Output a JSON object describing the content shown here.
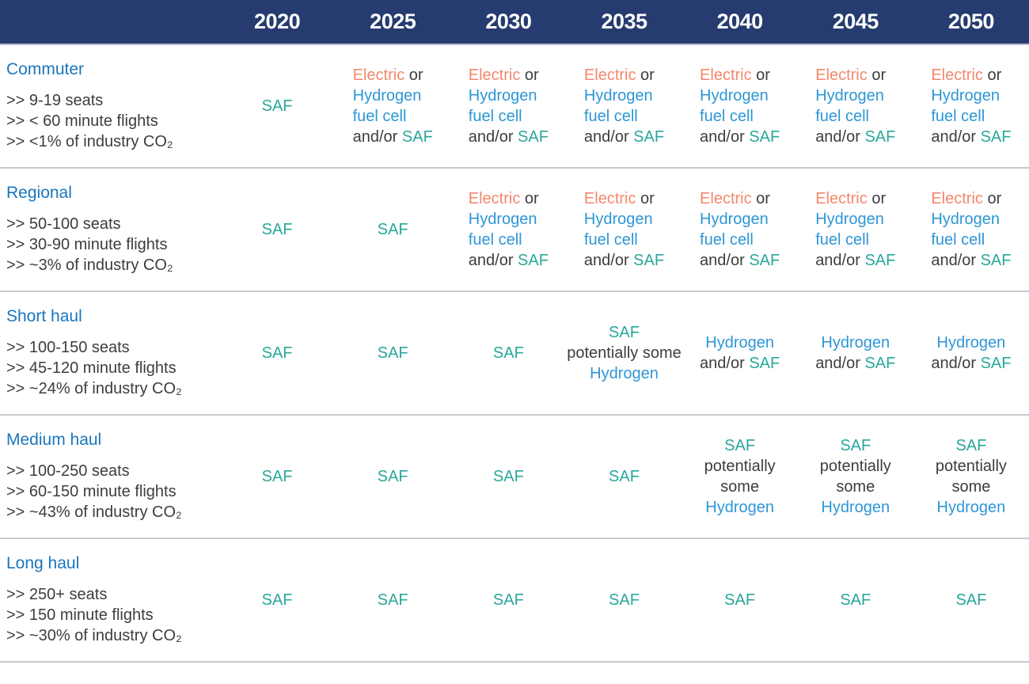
{
  "palette": {
    "header_bg": "#263B6F",
    "divider": "#C9C9CF",
    "title_blue": "#1B76BC",
    "saf_teal": "#2AA79B",
    "electric_orange": "#F4876C",
    "hydrogen_blue": "#2E96D5",
    "dark_text": "#3D3D3E"
  },
  "header": {
    "years": [
      "2020",
      "2025",
      "2030",
      "2035",
      "2040",
      "2045",
      "2050"
    ]
  },
  "legend_terms": {
    "saf": "SAF",
    "electric": "Electric",
    "hydrogen": "Hydrogen"
  },
  "rows": [
    {
      "title": "Commuter",
      "bullets": [
        ">> 9-19 seats",
        ">> < 60 minute flights",
        ">> <1% of industry CO₂"
      ],
      "cells": [
        {
          "align": "center",
          "lines": [
            [
              {
                "t": "SAF",
                "c": "saf"
              }
            ]
          ]
        },
        {
          "align": "left",
          "lines": [
            [
              {
                "t": "Electric",
                "c": "electric"
              },
              {
                "t": " or",
                "c": "dark"
              }
            ],
            [
              {
                "t": "Hydrogen",
                "c": "hydrogen"
              }
            ],
            [
              {
                "t": "fuel cell",
                "c": "hydrogen"
              }
            ],
            [
              {
                "t": "and/or ",
                "c": "dark"
              },
              {
                "t": "SAF",
                "c": "saf"
              }
            ]
          ]
        },
        {
          "align": "left",
          "lines": [
            [
              {
                "t": "Electric",
                "c": "electric"
              },
              {
                "t": " or",
                "c": "dark"
              }
            ],
            [
              {
                "t": "Hydrogen",
                "c": "hydrogen"
              }
            ],
            [
              {
                "t": "fuel cell",
                "c": "hydrogen"
              }
            ],
            [
              {
                "t": "and/or ",
                "c": "dark"
              },
              {
                "t": "SAF",
                "c": "saf"
              }
            ]
          ]
        },
        {
          "align": "left",
          "lines": [
            [
              {
                "t": "Electric",
                "c": "electric"
              },
              {
                "t": " or",
                "c": "dark"
              }
            ],
            [
              {
                "t": "Hydrogen",
                "c": "hydrogen"
              }
            ],
            [
              {
                "t": "fuel cell",
                "c": "hydrogen"
              }
            ],
            [
              {
                "t": "and/or ",
                "c": "dark"
              },
              {
                "t": "SAF",
                "c": "saf"
              }
            ]
          ]
        },
        {
          "align": "left",
          "lines": [
            [
              {
                "t": "Electric",
                "c": "electric"
              },
              {
                "t": " or",
                "c": "dark"
              }
            ],
            [
              {
                "t": "Hydrogen",
                "c": "hydrogen"
              }
            ],
            [
              {
                "t": "fuel cell",
                "c": "hydrogen"
              }
            ],
            [
              {
                "t": "and/or ",
                "c": "dark"
              },
              {
                "t": "SAF",
                "c": "saf"
              }
            ]
          ]
        },
        {
          "align": "left",
          "lines": [
            [
              {
                "t": "Electric",
                "c": "electric"
              },
              {
                "t": " or",
                "c": "dark"
              }
            ],
            [
              {
                "t": "Hydrogen",
                "c": "hydrogen"
              }
            ],
            [
              {
                "t": "fuel cell",
                "c": "hydrogen"
              }
            ],
            [
              {
                "t": "and/or ",
                "c": "dark"
              },
              {
                "t": "SAF",
                "c": "saf"
              }
            ]
          ]
        },
        {
          "align": "left",
          "lines": [
            [
              {
                "t": "Electric",
                "c": "electric"
              },
              {
                "t": " or",
                "c": "dark"
              }
            ],
            [
              {
                "t": "Hydrogen",
                "c": "hydrogen"
              }
            ],
            [
              {
                "t": "fuel cell",
                "c": "hydrogen"
              }
            ],
            [
              {
                "t": "and/or ",
                "c": "dark"
              },
              {
                "t": "SAF",
                "c": "saf"
              }
            ]
          ]
        }
      ]
    },
    {
      "title": "Regional",
      "bullets": [
        ">> 50-100 seats",
        ">> 30-90 minute flights",
        ">> ~3% of industry CO₂"
      ],
      "cells": [
        {
          "align": "center",
          "lines": [
            [
              {
                "t": "SAF",
                "c": "saf"
              }
            ]
          ]
        },
        {
          "align": "center",
          "lines": [
            [
              {
                "t": "SAF",
                "c": "saf"
              }
            ]
          ]
        },
        {
          "align": "left",
          "lines": [
            [
              {
                "t": "Electric",
                "c": "electric"
              },
              {
                "t": " or",
                "c": "dark"
              }
            ],
            [
              {
                "t": "Hydrogen",
                "c": "hydrogen"
              }
            ],
            [
              {
                "t": "fuel cell",
                "c": "hydrogen"
              }
            ],
            [
              {
                "t": "and/or ",
                "c": "dark"
              },
              {
                "t": "SAF",
                "c": "saf"
              }
            ]
          ]
        },
        {
          "align": "left",
          "lines": [
            [
              {
                "t": "Electric",
                "c": "electric"
              },
              {
                "t": " or",
                "c": "dark"
              }
            ],
            [
              {
                "t": "Hydrogen",
                "c": "hydrogen"
              }
            ],
            [
              {
                "t": "fuel cell",
                "c": "hydrogen"
              }
            ],
            [
              {
                "t": "and/or ",
                "c": "dark"
              },
              {
                "t": "SAF",
                "c": "saf"
              }
            ]
          ]
        },
        {
          "align": "left",
          "lines": [
            [
              {
                "t": "Electric",
                "c": "electric"
              },
              {
                "t": " or",
                "c": "dark"
              }
            ],
            [
              {
                "t": "Hydrogen",
                "c": "hydrogen"
              }
            ],
            [
              {
                "t": "fuel cell",
                "c": "hydrogen"
              }
            ],
            [
              {
                "t": "and/or ",
                "c": "dark"
              },
              {
                "t": "SAF",
                "c": "saf"
              }
            ]
          ]
        },
        {
          "align": "left",
          "lines": [
            [
              {
                "t": "Electric",
                "c": "electric"
              },
              {
                "t": " or",
                "c": "dark"
              }
            ],
            [
              {
                "t": "Hydrogen",
                "c": "hydrogen"
              }
            ],
            [
              {
                "t": "fuel cell",
                "c": "hydrogen"
              }
            ],
            [
              {
                "t": "and/or ",
                "c": "dark"
              },
              {
                "t": "SAF",
                "c": "saf"
              }
            ]
          ]
        },
        {
          "align": "left",
          "lines": [
            [
              {
                "t": "Electric",
                "c": "electric"
              },
              {
                "t": " or",
                "c": "dark"
              }
            ],
            [
              {
                "t": "Hydrogen",
                "c": "hydrogen"
              }
            ],
            [
              {
                "t": "fuel cell",
                "c": "hydrogen"
              }
            ],
            [
              {
                "t": "and/or ",
                "c": "dark"
              },
              {
                "t": "SAF",
                "c": "saf"
              }
            ]
          ]
        }
      ]
    },
    {
      "title": "Short haul",
      "bullets": [
        ">> 100-150 seats",
        ">> 45-120 minute flights",
        ">> ~24% of industry CO₂"
      ],
      "cells": [
        {
          "align": "center",
          "lines": [
            [
              {
                "t": "SAF",
                "c": "saf"
              }
            ]
          ]
        },
        {
          "align": "center",
          "lines": [
            [
              {
                "t": "SAF",
                "c": "saf"
              }
            ]
          ]
        },
        {
          "align": "center",
          "lines": [
            [
              {
                "t": "SAF",
                "c": "saf"
              }
            ]
          ]
        },
        {
          "align": "center",
          "lines": [
            [
              {
                "t": "SAF",
                "c": "saf"
              }
            ],
            [
              {
                "t": "potentially some",
                "c": "dark"
              }
            ],
            [
              {
                "t": "Hydrogen",
                "c": "hydrogen"
              }
            ]
          ]
        },
        {
          "align": "center",
          "lines": [
            [
              {
                "t": "Hydrogen",
                "c": "hydrogen"
              }
            ],
            [
              {
                "t": "and/or ",
                "c": "dark"
              },
              {
                "t": "SAF",
                "c": "saf"
              }
            ]
          ]
        },
        {
          "align": "center",
          "lines": [
            [
              {
                "t": "Hydrogen",
                "c": "hydrogen"
              }
            ],
            [
              {
                "t": "and/or ",
                "c": "dark"
              },
              {
                "t": "SAF",
                "c": "saf"
              }
            ]
          ]
        },
        {
          "align": "center",
          "lines": [
            [
              {
                "t": "Hydrogen",
                "c": "hydrogen"
              }
            ],
            [
              {
                "t": "and/or ",
                "c": "dark"
              },
              {
                "t": "SAF",
                "c": "saf"
              }
            ]
          ]
        }
      ]
    },
    {
      "title": "Medium haul",
      "bullets": [
        ">> 100-250 seats",
        ">> 60-150 minute flights",
        ">> ~43% of industry CO₂"
      ],
      "cells": [
        {
          "align": "center",
          "lines": [
            [
              {
                "t": "SAF",
                "c": "saf"
              }
            ]
          ]
        },
        {
          "align": "center",
          "lines": [
            [
              {
                "t": "SAF",
                "c": "saf"
              }
            ]
          ]
        },
        {
          "align": "center",
          "lines": [
            [
              {
                "t": "SAF",
                "c": "saf"
              }
            ]
          ]
        },
        {
          "align": "center",
          "lines": [
            [
              {
                "t": "SAF",
                "c": "saf"
              }
            ]
          ]
        },
        {
          "align": "center",
          "lines": [
            [
              {
                "t": "SAF",
                "c": "saf"
              }
            ],
            [
              {
                "t": "potentially",
                "c": "dark"
              }
            ],
            [
              {
                "t": "some",
                "c": "dark"
              }
            ],
            [
              {
                "t": "Hydrogen",
                "c": "hydrogen"
              }
            ]
          ]
        },
        {
          "align": "center",
          "lines": [
            [
              {
                "t": "SAF",
                "c": "saf"
              }
            ],
            [
              {
                "t": "potentially",
                "c": "dark"
              }
            ],
            [
              {
                "t": "some",
                "c": "dark"
              }
            ],
            [
              {
                "t": "Hydrogen",
                "c": "hydrogen"
              }
            ]
          ]
        },
        {
          "align": "center",
          "lines": [
            [
              {
                "t": "SAF",
                "c": "saf"
              }
            ],
            [
              {
                "t": "potentially",
                "c": "dark"
              }
            ],
            [
              {
                "t": "some",
                "c": "dark"
              }
            ],
            [
              {
                "t": "Hydrogen",
                "c": "hydrogen"
              }
            ]
          ]
        }
      ]
    },
    {
      "title": "Long haul",
      "bullets": [
        ">> 250+ seats",
        ">> 150 minute flights",
        ">> ~30% of industry CO₂"
      ],
      "cells": [
        {
          "align": "center",
          "lines": [
            [
              {
                "t": "SAF",
                "c": "saf"
              }
            ]
          ]
        },
        {
          "align": "center",
          "lines": [
            [
              {
                "t": "SAF",
                "c": "saf"
              }
            ]
          ]
        },
        {
          "align": "center",
          "lines": [
            [
              {
                "t": "SAF",
                "c": "saf"
              }
            ]
          ]
        },
        {
          "align": "center",
          "lines": [
            [
              {
                "t": "SAF",
                "c": "saf"
              }
            ]
          ]
        },
        {
          "align": "center",
          "lines": [
            [
              {
                "t": "SAF",
                "c": "saf"
              }
            ]
          ]
        },
        {
          "align": "center",
          "lines": [
            [
              {
                "t": "SAF",
                "c": "saf"
              }
            ]
          ]
        },
        {
          "align": "center",
          "lines": [
            [
              {
                "t": "SAF",
                "c": "saf"
              }
            ]
          ]
        }
      ]
    }
  ]
}
